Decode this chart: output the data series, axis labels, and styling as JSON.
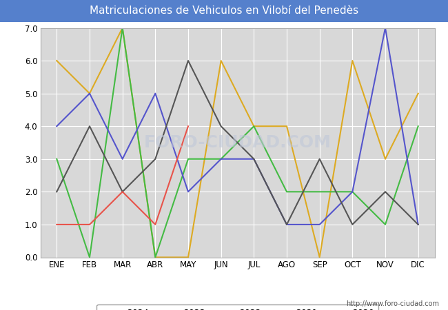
{
  "title": "Matriculaciones de Vehiculos en Vilobí del Penedès",
  "months": [
    "ENE",
    "FEB",
    "MAR",
    "ABR",
    "MAY",
    "JUN",
    "JUL",
    "AGO",
    "SEP",
    "OCT",
    "NOV",
    "DIC"
  ],
  "series": {
    "2024": [
      1,
      1,
      2,
      1,
      4,
      null,
      null,
      null,
      null,
      null,
      null,
      null
    ],
    "2023": [
      2,
      4,
      2,
      3,
      6,
      4,
      3,
      1,
      3,
      1,
      2,
      1
    ],
    "2022": [
      4,
      5,
      3,
      5,
      2,
      3,
      3,
      1,
      1,
      2,
      7,
      1
    ],
    "2021": [
      3,
      0,
      7,
      0,
      3,
      3,
      4,
      2,
      2,
      2,
      1,
      4
    ],
    "2020": [
      6,
      5,
      7,
      0,
      0,
      6,
      4,
      4,
      0,
      6,
      3,
      5
    ]
  },
  "colors": {
    "2024": "#e8534a",
    "2023": "#555555",
    "2022": "#5555cc",
    "2021": "#44bb44",
    "2020": "#ddaa22"
  },
  "ylim": [
    0,
    7.0
  ],
  "yticks": [
    0.0,
    1.0,
    2.0,
    3.0,
    4.0,
    5.0,
    6.0,
    7.0
  ],
  "title_bg_color": "#5580cc",
  "title_text_color": "#ffffff",
  "plot_bg_color": "#d8d8d8",
  "fig_bg_color": "#ffffff",
  "watermark_chart": "FORO-CIUDAD.COM",
  "watermark_url": "http://www.foro-ciudad.com"
}
